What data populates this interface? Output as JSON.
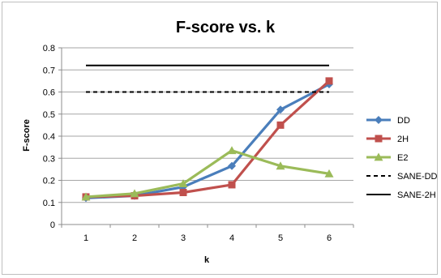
{
  "chart_data": {
    "type": "line",
    "title": "F-score vs. k",
    "xlabel": "k",
    "ylabel": "F-score",
    "x": [
      1,
      2,
      3,
      4,
      5,
      6
    ],
    "ylim": [
      0,
      0.8
    ],
    "yticks": [
      "0",
      "0.1",
      "0.2",
      "0.3",
      "0.4",
      "0.5",
      "0.6",
      "0.7",
      "0.8"
    ],
    "grid": true,
    "legend_position": "right",
    "series": [
      {
        "name": "DD",
        "values": [
          0.12,
          0.13,
          0.17,
          0.265,
          0.52,
          0.635
        ],
        "color": "#4a7ebb",
        "marker": "diamond",
        "style": "solid"
      },
      {
        "name": "2H",
        "values": [
          0.125,
          0.13,
          0.145,
          0.18,
          0.45,
          0.65
        ],
        "color": "#c0504d",
        "marker": "square",
        "style": "solid"
      },
      {
        "name": "E2",
        "values": [
          0.125,
          0.14,
          0.185,
          0.335,
          0.265,
          0.23
        ],
        "color": "#9bbb59",
        "marker": "triangle",
        "style": "solid"
      },
      {
        "name": "SANE-DD",
        "values": [
          0.6,
          0.6,
          0.6,
          0.6,
          0.6,
          0.6
        ],
        "color": "#000000",
        "marker": "none",
        "style": "dashed"
      },
      {
        "name": "SANE-2H",
        "values": [
          0.72,
          0.72,
          0.72,
          0.72,
          0.72,
          0.72
        ],
        "color": "#000000",
        "marker": "none",
        "style": "solid"
      }
    ]
  }
}
